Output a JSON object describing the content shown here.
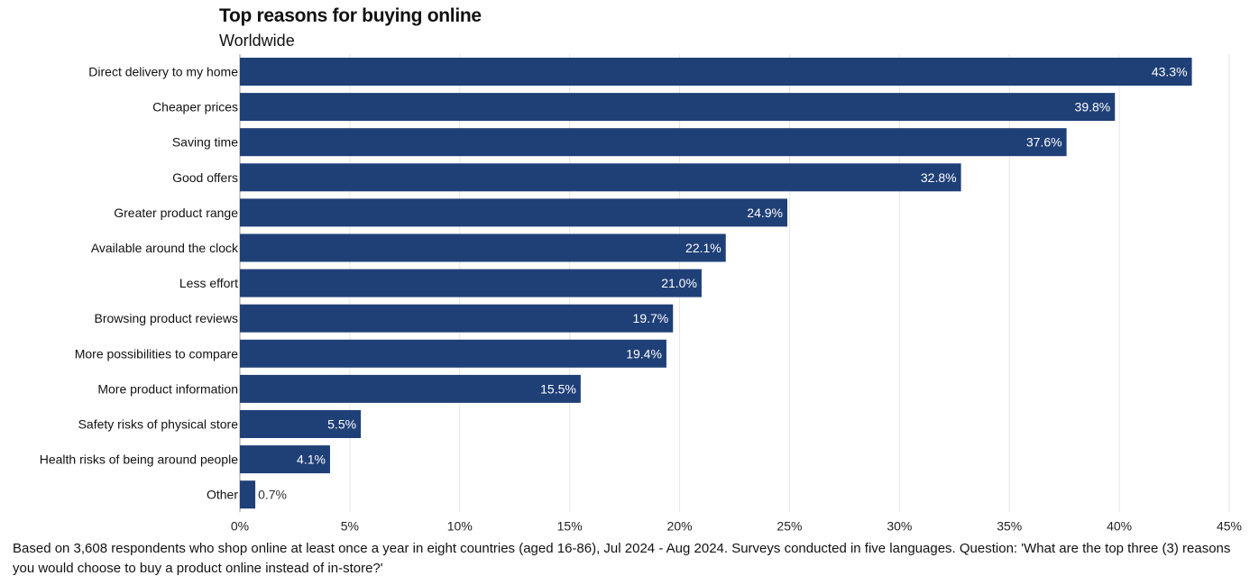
{
  "chart_data": {
    "type": "bar",
    "orientation": "horizontal",
    "title": "Top reasons for buying online",
    "subtitle": "Worldwide",
    "categories": [
      "Direct delivery to my home",
      "Cheaper prices",
      "Saving time",
      "Good offers",
      "Greater product range",
      "Available around the clock",
      "Less effort",
      "Browsing product reviews",
      "More possibilities to compare",
      "More product information",
      "Safety risks of physical store",
      "Health risks of being around people",
      "Other"
    ],
    "values": [
      43.3,
      39.8,
      37.6,
      32.8,
      24.9,
      22.1,
      21.0,
      19.7,
      19.4,
      15.5,
      5.5,
      4.1,
      0.7
    ],
    "data_labels": [
      "43.3%",
      "39.8%",
      "37.6%",
      "32.8%",
      "24.9%",
      "22.1%",
      "21.0%",
      "19.7%",
      "19.4%",
      "15.5%",
      "5.5%",
      "4.1%",
      "0.7%"
    ],
    "xlim": [
      0,
      45
    ],
    "xticks": [
      0,
      5,
      10,
      15,
      20,
      25,
      30,
      35,
      40,
      45
    ],
    "xtick_labels": [
      "0%",
      "5%",
      "10%",
      "15%",
      "20%",
      "25%",
      "30%",
      "35%",
      "40%",
      "45%"
    ],
    "xlabel": "",
    "ylabel": "",
    "grid": true,
    "bar_color": "#1f3f77",
    "footnote": "Based on 3,608 respondents who shop online at least once a year in eight countries (aged 16-86), Jul 2024 - Aug 2024. Surveys conducted in five languages. Question: 'What are the top three (3) reasons you would choose to buy a product online instead of in-store?'"
  }
}
